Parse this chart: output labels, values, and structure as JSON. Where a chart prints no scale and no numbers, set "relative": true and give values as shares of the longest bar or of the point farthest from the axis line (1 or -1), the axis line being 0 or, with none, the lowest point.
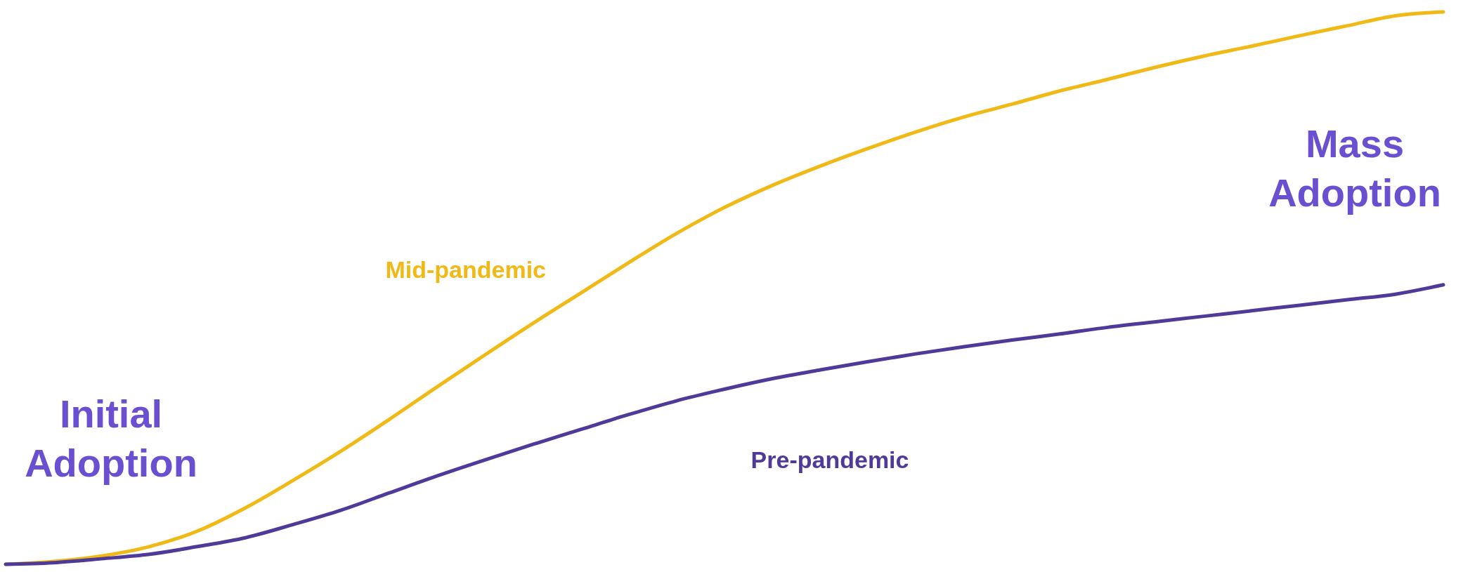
{
  "chart_data": {
    "type": "line",
    "relative": true,
    "categories": [
      null,
      null,
      null,
      null,
      null,
      null,
      null,
      null,
      null,
      null,
      null,
      null,
      null,
      null,
      null,
      null,
      null,
      null,
      null,
      null,
      null,
      null,
      null,
      null,
      null,
      null,
      null,
      null,
      null,
      null,
      null
    ],
    "series": [
      {
        "name": "Mid-pandemic",
        "color": "#f0b915",
        "values": [
          0,
          0.005,
          0.015,
          0.032,
          0.06,
          0.102,
          0.152,
          0.205,
          0.262,
          0.321,
          0.379,
          0.436,
          0.491,
          0.546,
          0.599,
          0.646,
          0.686,
          0.721,
          0.753,
          0.783,
          0.81,
          0.833,
          0.857,
          0.878,
          0.9,
          0.92,
          0.938,
          0.957,
          0.975,
          0.993,
          1.0
        ]
      },
      {
        "name": "Pre-pandemic",
        "color": "#4f3a9a",
        "values": [
          0,
          0.003,
          0.01,
          0.018,
          0.032,
          0.048,
          0.072,
          0.098,
          0.129,
          0.16,
          0.189,
          0.217,
          0.244,
          0.271,
          0.296,
          0.317,
          0.336,
          0.352,
          0.367,
          0.381,
          0.394,
          0.406,
          0.417,
          0.429,
          0.439,
          0.449,
          0.459,
          0.469,
          0.479,
          0.489,
          0.506
        ]
      }
    ],
    "annotations": [
      "Initial Adoption",
      "Mass Adoption"
    ],
    "grid": false,
    "line_style": "solid",
    "marker": "none"
  }
}
